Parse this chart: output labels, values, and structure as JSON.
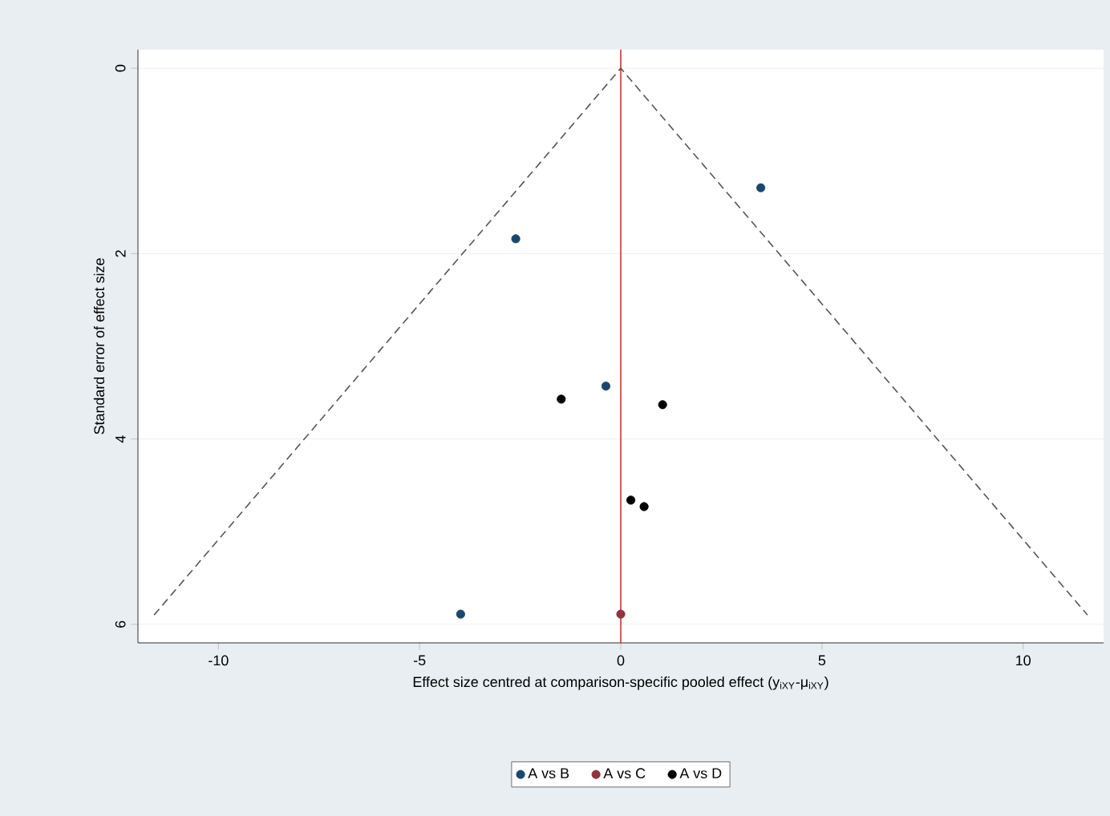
{
  "chart_data": {
    "type": "scatter",
    "xlabel": "Effect size centred at comparison-specific pooled effect (y$_{iXY}$-μ$_{iXY}$)",
    "ylabel": "Standard error of effect size",
    "xlim": [
      -12,
      12
    ],
    "ylim": [
      6.2,
      -0.2
    ],
    "xticks": [
      -10,
      -5,
      0,
      5,
      10
    ],
    "yticks": [
      0,
      2,
      4,
      6
    ],
    "grid": "y",
    "legend": "bottom",
    "marker": "circle",
    "ref_lines": [
      {
        "axis": "x",
        "value": 0,
        "color": "#cc3333"
      }
    ],
    "series": [
      {
        "type": "line",
        "color": "#555555",
        "line_style": "dashed",
        "marker": "none",
        "x": [
          -11.6,
          0,
          11.6
        ],
        "values": [
          5.9,
          0,
          5.9
        ]
      },
      {
        "name": "A vs B",
        "color": "#1a476f",
        "x": [
          3.48,
          -2.61,
          -0.37,
          -3.98
        ],
        "values": [
          1.29,
          1.84,
          3.43,
          5.89
        ]
      },
      {
        "name": "A vs C",
        "color": "#90353b",
        "x": [
          0
        ],
        "values": [
          5.89
        ]
      },
      {
        "name": "A vs D",
        "color": "#000000",
        "x": [
          -1.48,
          1.04,
          0.25,
          0.58
        ],
        "values": [
          3.57,
          3.63,
          4.66,
          4.73
        ]
      }
    ]
  }
}
